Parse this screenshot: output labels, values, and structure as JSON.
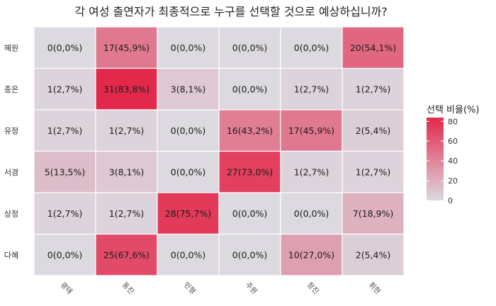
{
  "chart_data": {
    "type": "heatmap",
    "title": "각 여성 출연자가 최종적으로 누구를 선택할 것으로 예상하십니까?",
    "rows": [
      "혜원",
      "종은",
      "유정",
      "서경",
      "상정",
      "다혜"
    ],
    "columns": [
      "광태",
      "동진",
      "민형",
      "주원",
      "창진",
      "휘현"
    ],
    "values": [
      [
        0,
        17,
        0,
        0,
        0,
        20
      ],
      [
        1,
        31,
        3,
        0,
        1,
        1
      ],
      [
        1,
        1,
        0,
        16,
        17,
        2
      ],
      [
        5,
        3,
        0,
        27,
        1,
        1
      ],
      [
        1,
        1,
        28,
        0,
        0,
        7
      ],
      [
        0,
        25,
        0,
        0,
        10,
        2
      ]
    ],
    "percents": [
      [
        0.0,
        45.9,
        0.0,
        0.0,
        0.0,
        54.1
      ],
      [
        2.7,
        83.8,
        8.1,
        0.0,
        2.7,
        2.7
      ],
      [
        2.7,
        2.7,
        0.0,
        43.2,
        45.9,
        5.4
      ],
      [
        13.5,
        8.1,
        0.0,
        73.0,
        2.7,
        2.7
      ],
      [
        2.7,
        2.7,
        75.7,
        0.0,
        0.0,
        18.9
      ],
      [
        0.0,
        67.6,
        0.0,
        0.0,
        27.0,
        5.4
      ]
    ],
    "cell_labels": [
      [
        "0(0,0%)",
        "17(45,9%)",
        "0(0,0%)",
        "0(0,0%)",
        "0(0,0%)",
        "20(54,1%)"
      ],
      [
        "1(2,7%)",
        "31(83,8%)",
        "3(8,1%)",
        "0(0,0%)",
        "1(2,7%)",
        "1(2,7%)"
      ],
      [
        "1(2,7%)",
        "1(2,7%)",
        "0(0,0%)",
        "16(43,2%)",
        "17(45,9%)",
        "2(5,4%)"
      ],
      [
        "5(13,5%)",
        "3(8,1%)",
        "0(0,0%)",
        "27(73,0%)",
        "1(2,7%)",
        "1(2,7%)"
      ],
      [
        "1(2,7%)",
        "1(2,7%)",
        "28(75,7%)",
        "0(0,0%)",
        "0(0,0%)",
        "7(18,9%)"
      ],
      [
        "0(0,0%)",
        "25(67,6%)",
        "0(0,0%)",
        "0(0,0%)",
        "10(27,0%)",
        "2(5,4%)"
      ]
    ],
    "legend": {
      "title": "선택 비율(%)",
      "ticks": [
        80,
        60,
        40,
        20,
        0
      ],
      "range": [
        0,
        83.8
      ]
    },
    "colors": {
      "low": "#dcd9e1",
      "high": "#e3294b"
    },
    "grid": false
  }
}
